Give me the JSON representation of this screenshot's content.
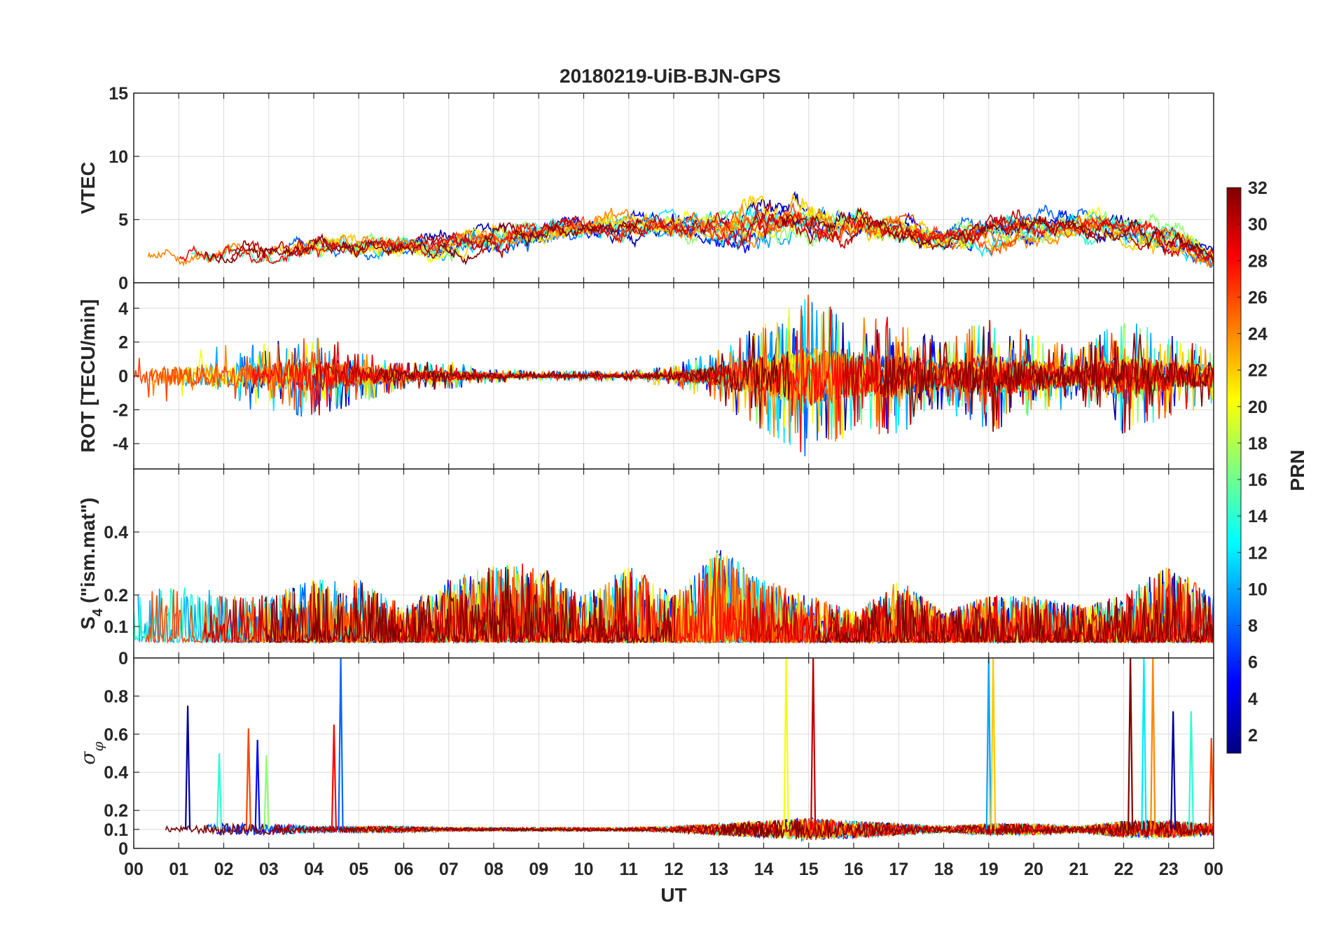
{
  "chart_data": [
    {
      "type": "line",
      "title": "20180219-UiB-BJN-GPS",
      "ylabel": "VTEC",
      "xlabel": "",
      "x_range": [
        0,
        24
      ],
      "ylim": [
        0,
        15
      ],
      "yticks": [
        0,
        5,
        10,
        15
      ],
      "ytick_labels": [
        "0",
        "5",
        "10",
        "15"
      ],
      "grid": true,
      "envelope": {
        "x": [
          0,
          1,
          2,
          3,
          4,
          5,
          6,
          7,
          8,
          9,
          10,
          11,
          12,
          13,
          14,
          15,
          16,
          17,
          18,
          19,
          20,
          21,
          22,
          23,
          24
        ],
        "baseline": [
          2,
          2,
          2,
          2.5,
          3,
          3,
          3,
          3,
          3.5,
          4,
          4.5,
          4.5,
          4.5,
          4.5,
          5,
          5,
          4.5,
          4,
          3.5,
          4,
          4.5,
          4.5,
          4,
          3.5,
          2
        ],
        "spread": [
          1,
          1.5,
          1.5,
          2,
          2,
          2,
          1.5,
          2,
          2.5,
          2.5,
          2,
          2,
          2,
          3,
          3.5,
          3.5,
          3,
          2.5,
          2,
          2.5,
          2.5,
          2.5,
          2.5,
          2.5,
          1.5
        ]
      }
    },
    {
      "type": "line",
      "ylabel": "ROT [TECU/min]",
      "xlabel": "",
      "x_range": [
        0,
        24
      ],
      "ylim": [
        -5.5,
        5.5
      ],
      "yticks": [
        -4,
        -2,
        0,
        2,
        4
      ],
      "ytick_labels": [
        "-4",
        "-2",
        "0",
        "2",
        "4"
      ],
      "grid": true,
      "envelope": {
        "x": [
          0,
          1,
          2,
          3,
          4,
          5,
          6,
          7,
          8,
          9,
          10,
          11,
          12,
          13,
          14,
          15,
          16,
          17,
          18,
          19,
          20,
          21,
          22,
          23,
          24
        ],
        "baseline": [
          0,
          0,
          0,
          0,
          0,
          0,
          0,
          0,
          0,
          0,
          0,
          0,
          0,
          0,
          0,
          0,
          0,
          0,
          0,
          0,
          0,
          0,
          0,
          0,
          0
        ],
        "spread": [
          0.8,
          1.2,
          1.5,
          1.5,
          1.8,
          1.2,
          0.6,
          0.6,
          0.3,
          0.2,
          0.2,
          0.2,
          0.5,
          1.2,
          2.5,
          3.5,
          2.5,
          2.5,
          1.5,
          2.5,
          1.8,
          1.2,
          2.5,
          1.8,
          1.2
        ]
      }
    },
    {
      "type": "line",
      "ylabel": "S4 (\"ism.mat\")",
      "ylabel_main": "S",
      "ylabel_sub": "4",
      "ylabel_rest": " (\"ism.mat\")",
      "xlabel": "",
      "x_range": [
        0,
        24
      ],
      "ylim": [
        0,
        0.6
      ],
      "yticks": [
        0,
        0.1,
        0.2,
        0.4
      ],
      "ytick_labels": [
        "0",
        "0.1",
        "0.2",
        "0.4"
      ],
      "grid": true,
      "envelope": {
        "x": [
          0,
          1,
          2,
          3,
          4,
          5,
          6,
          7,
          8,
          9,
          10,
          11,
          12,
          13,
          14,
          15,
          16,
          17,
          18,
          19,
          20,
          21,
          22,
          23,
          24
        ],
        "baseline": [
          0.05,
          0.05,
          0.05,
          0.05,
          0.05,
          0.05,
          0.05,
          0.05,
          0.05,
          0.05,
          0.05,
          0.05,
          0.05,
          0.05,
          0.05,
          0.05,
          0.05,
          0.05,
          0.05,
          0.05,
          0.05,
          0.05,
          0.05,
          0.05,
          0.05
        ],
        "spread": [
          0.15,
          0.2,
          0.15,
          0.15,
          0.2,
          0.2,
          0.12,
          0.2,
          0.25,
          0.25,
          0.15,
          0.25,
          0.15,
          0.3,
          0.2,
          0.15,
          0.1,
          0.2,
          0.1,
          0.15,
          0.15,
          0.12,
          0.15,
          0.25,
          0.15
        ]
      }
    },
    {
      "type": "line",
      "ylabel": "σφ",
      "ylabel_main": "σ",
      "ylabel_sub": "φ",
      "xlabel": "UT",
      "x_range": [
        0,
        24
      ],
      "ylim": [
        0,
        1
      ],
      "yticks": [
        0,
        0.1,
        0.2,
        0.4,
        0.6,
        0.8
      ],
      "ytick_labels": [
        "0",
        "0.1",
        "0.2",
        "0.4",
        "0.6",
        "0.8"
      ],
      "grid": true,
      "envelope": {
        "x": [
          0,
          1,
          2,
          3,
          4,
          5,
          6,
          7,
          8,
          9,
          10,
          11,
          12,
          13,
          14,
          15,
          16,
          17,
          18,
          19,
          20,
          21,
          22,
          23,
          24
        ],
        "baseline": [
          0.1,
          0.1,
          0.1,
          0.1,
          0.1,
          0.1,
          0.1,
          0.1,
          0.1,
          0.1,
          0.1,
          0.1,
          0.1,
          0.1,
          0.1,
          0.1,
          0.1,
          0.1,
          0.1,
          0.1,
          0.1,
          0.1,
          0.1,
          0.1,
          0.1
        ],
        "spread": [
          0.05,
          0.05,
          0.1,
          0.1,
          0.05,
          0.05,
          0.05,
          0.03,
          0.03,
          0.03,
          0.03,
          0.03,
          0.05,
          0.1,
          0.15,
          0.2,
          0.15,
          0.1,
          0.05,
          0.1,
          0.1,
          0.05,
          0.15,
          0.15,
          0.1
        ]
      },
      "spikes": [
        {
          "x": 1.2,
          "y": 0.75
        },
        {
          "x": 1.9,
          "y": 0.5
        },
        {
          "x": 2.55,
          "y": 0.63
        },
        {
          "x": 2.75,
          "y": 0.57
        },
        {
          "x": 2.95,
          "y": 0.49
        },
        {
          "x": 4.45,
          "y": 0.65
        },
        {
          "x": 4.6,
          "y": 1.0
        },
        {
          "x": 14.5,
          "y": 1.0
        },
        {
          "x": 15.1,
          "y": 1.0
        },
        {
          "x": 19.0,
          "y": 1.0
        },
        {
          "x": 19.1,
          "y": 1.0
        },
        {
          "x": 22.15,
          "y": 1.0
        },
        {
          "x": 22.45,
          "y": 1.0
        },
        {
          "x": 22.65,
          "y": 1.0
        },
        {
          "x": 23.1,
          "y": 0.72
        },
        {
          "x": 23.5,
          "y": 0.72
        },
        {
          "x": 23.95,
          "y": 0.58
        }
      ]
    }
  ],
  "x_axis": {
    "label": "UT",
    "ticks": [
      0,
      1,
      2,
      3,
      4,
      5,
      6,
      7,
      8,
      9,
      10,
      11,
      12,
      13,
      14,
      15,
      16,
      17,
      18,
      19,
      20,
      21,
      22,
      23,
      24
    ],
    "tick_labels": [
      "00",
      "01",
      "02",
      "03",
      "04",
      "05",
      "06",
      "07",
      "08",
      "09",
      "10",
      "11",
      "12",
      "13",
      "14",
      "15",
      "16",
      "17",
      "18",
      "19",
      "20",
      "21",
      "22",
      "23",
      "00"
    ]
  },
  "colorbar": {
    "label": "PRN",
    "range": [
      1,
      32
    ],
    "ticks": [
      2,
      4,
      6,
      8,
      10,
      12,
      14,
      16,
      18,
      20,
      22,
      24,
      26,
      28,
      30,
      32
    ],
    "tick_labels": [
      "2",
      "4",
      "6",
      "8",
      "10",
      "12",
      "14",
      "16",
      "18",
      "20",
      "22",
      "24",
      "26",
      "28",
      "30",
      "32"
    ],
    "colormap": "jet"
  },
  "series_prns": [
    2,
    5,
    8,
    10,
    12,
    14,
    17,
    20,
    22,
    24,
    26,
    28,
    30,
    32
  ],
  "jet_stops": [
    "#00007f",
    "#0000ff",
    "#007fff",
    "#00ffff",
    "#7fff7f",
    "#ffff00",
    "#ff7f00",
    "#ff0000",
    "#7f0000"
  ]
}
